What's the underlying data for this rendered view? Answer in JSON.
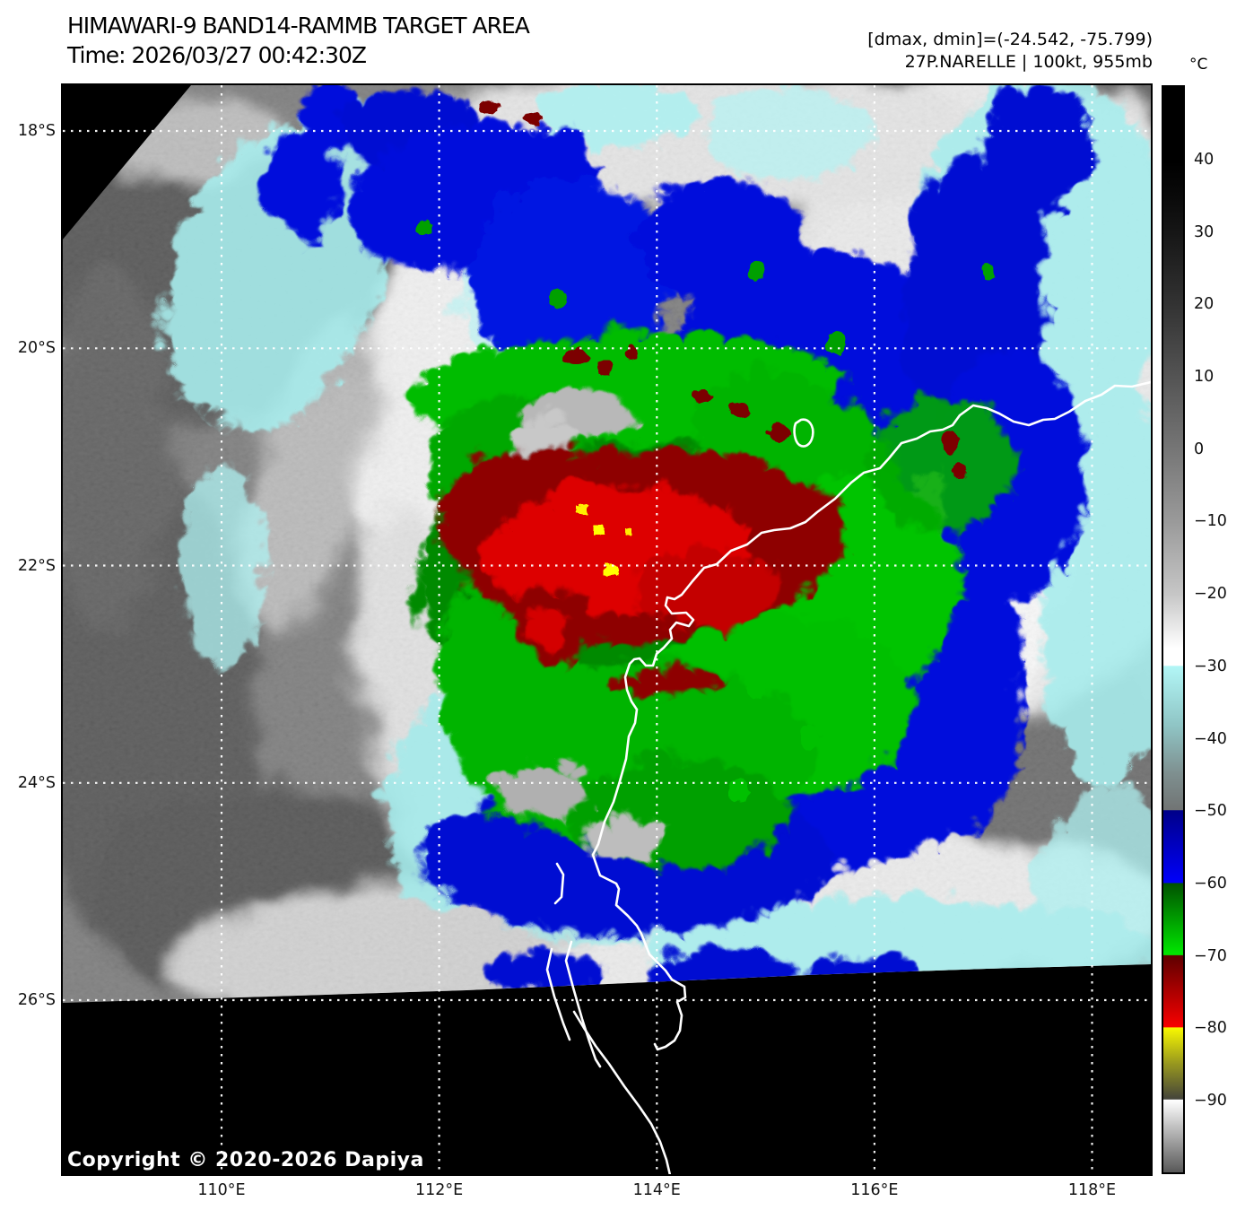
{
  "header": {
    "title": "HIMAWARI-9 BAND14-RAMMB TARGET AREA",
    "time_line": "Time: 2026/03/27 00:42:30Z",
    "stats_line": "[dmax, dmin]=(-24.542, -75.799)",
    "storm_line": "27P.NARELLE | 100kt, 955mb"
  },
  "map": {
    "lat_ticks": [
      "18°S",
      "20°S",
      "22°S",
      "24°S",
      "26°S"
    ],
    "lon_ticks": [
      "110°E",
      "112°E",
      "114°E",
      "116°E",
      "118°E"
    ],
    "copyright": "Copyright © 2020-2026 Dapiya"
  },
  "colorbar": {
    "unit": "°C",
    "ticks": [
      "40",
      "30",
      "20",
      "10",
      "0",
      "−10",
      "−20",
      "−30",
      "−40",
      "−50",
      "−60",
      "−70",
      "−80",
      "−90"
    ],
    "range_note": "enhanced IR brightness temperature scale",
    "segment_colors": {
      "warm_gray": [
        "#000000",
        "#ffffff"
      ],
      "cyan_-30_-50": [
        "#b2f6f6",
        "#717474"
      ],
      "blue_-50_-60": [
        "#000089",
        "#0000fa"
      ],
      "green_-60_-70": [
        "#005200",
        "#00e800"
      ],
      "red_-70_-80": [
        "#5e0000",
        "#f80000"
      ],
      "yellow_-80_-90": [
        "#f8f800",
        "#44443a"
      ],
      "below_-90": [
        "#ffffff",
        "#585858"
      ]
    },
    "gradient_stops": [
      [
        0.0,
        "#000000"
      ],
      [
        0.0684,
        "#000000"
      ],
      [
        0.102,
        "#0a0a0a"
      ],
      [
        0.1348,
        "#161616"
      ],
      [
        0.2013,
        "#333333"
      ],
      [
        0.2678,
        "#545454"
      ],
      [
        0.3343,
        "#767676"
      ],
      [
        0.4007,
        "#9a9a9a"
      ],
      [
        0.4672,
        "#c6c6c6"
      ],
      [
        0.517,
        "#ffffff"
      ],
      [
        0.533,
        "#ffffff"
      ],
      [
        0.5337,
        "#b2f6f6"
      ],
      [
        0.587,
        "#90c6c6"
      ],
      [
        0.633,
        "#7e8f8f"
      ],
      [
        0.666,
        "#717474"
      ],
      [
        0.6667,
        "#000089"
      ],
      [
        0.7331,
        "#0000fa"
      ],
      [
        0.7338,
        "#005200"
      ],
      [
        0.7996,
        "#00e800"
      ],
      [
        0.8003,
        "#5e0000"
      ],
      [
        0.8661,
        "#f80000"
      ],
      [
        0.8668,
        "#f8f800"
      ],
      [
        0.899,
        "#9a9a1e"
      ],
      [
        0.9325,
        "#44443a"
      ],
      [
        0.9332,
        "#ffffff"
      ],
      [
        1.0,
        "#585858"
      ]
    ]
  },
  "layout_constants": {
    "lat_tick_y0": 146,
    "lat_tick_step": 242.25,
    "lon_tick_x0": 247,
    "lon_tick_step": 242.63,
    "cb_tick_y0": 178,
    "cb_tick_step": 80.69
  }
}
